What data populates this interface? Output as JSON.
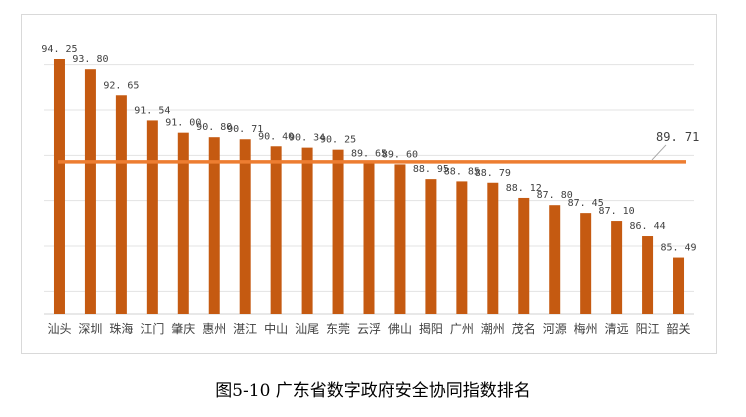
{
  "caption": "图5-10 广东省数字政府安全协同指数排名",
  "chart_data": {
    "type": "bar",
    "categories": [
      "汕头",
      "深圳",
      "珠海",
      "江门",
      "肇庆",
      "惠州",
      "湛江",
      "中山",
      "汕尾",
      "东莞",
      "云浮",
      "佛山",
      "揭阳",
      "广州",
      "潮州",
      "茂名",
      "河源",
      "梅州",
      "清远",
      "阳江",
      "韶关"
    ],
    "values": [
      94.25,
      93.8,
      92.65,
      91.54,
      91.0,
      90.8,
      90.71,
      90.4,
      90.34,
      90.25,
      89.65,
      89.6,
      88.95,
      88.85,
      88.79,
      88.12,
      87.8,
      87.45,
      87.1,
      86.44,
      85.49
    ],
    "value_labels": [
      "94. 25",
      "93. 80",
      "92. 65",
      "91. 54",
      "91. 00",
      "90. 80",
      "90. 71",
      "90. 40",
      "90. 34",
      "90. 25",
      "89. 65",
      "89. 60",
      "88. 95",
      "88. 85",
      "88. 79",
      "88. 12",
      "87. 80",
      "87. 45",
      "87. 10",
      "86. 44",
      "85. 49"
    ],
    "series": [
      {
        "type": "bar",
        "color": "#c55a11"
      },
      {
        "type": "line",
        "value": 89.71,
        "label": "89. 71",
        "color": "#ed7d31"
      }
    ],
    "ylim": [
      83,
      95
    ],
    "grid": true,
    "title": "",
    "xlabel": "",
    "ylabel": ""
  }
}
